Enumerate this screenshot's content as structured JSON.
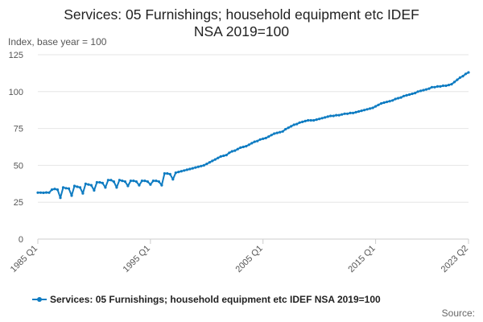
{
  "chart_data": {
    "type": "line",
    "title_line1": "Services: 05 Furnishings; household equipment etc IDEF",
    "title_line2": "NSA 2019=100",
    "ylabel": "Index, base year = 100",
    "xlabel": "",
    "ylim": [
      0,
      125
    ],
    "yticks": [
      "0",
      "25",
      "50",
      "75",
      "100",
      "125"
    ],
    "xticks": [
      {
        "label": "1985 Q1",
        "t": 1985.0
      },
      {
        "label": "1995 Q1",
        "t": 1995.0
      },
      {
        "label": "2005 Q1",
        "t": 2005.0
      },
      {
        "label": "2015 Q1",
        "t": 2015.0
      },
      {
        "label": "2023 Q2",
        "t": 2023.25
      }
    ],
    "xlim": [
      1985.0,
      2023.25
    ],
    "grid": true,
    "legend_position": "bottom",
    "series": [
      {
        "name": "Services: 05 Furnishings; household equipment etc IDEF NSA 2019=100",
        "color": "#0f7cc2",
        "points": [
          [
            1985.0,
            31.5
          ],
          [
            1985.25,
            31.5
          ],
          [
            1985.5,
            31.4
          ],
          [
            1985.75,
            31.6
          ],
          [
            1986.0,
            31.5
          ],
          [
            1986.25,
            33.5
          ],
          [
            1986.5,
            34.0
          ],
          [
            1986.75,
            33.5
          ],
          [
            1987.0,
            28.0
          ],
          [
            1987.25,
            35.0
          ],
          [
            1987.5,
            34.5
          ],
          [
            1987.75,
            34.3
          ],
          [
            1988.0,
            29.5
          ],
          [
            1988.25,
            36.0
          ],
          [
            1988.5,
            35.5
          ],
          [
            1988.75,
            35.0
          ],
          [
            1989.0,
            31.0
          ],
          [
            1989.25,
            37.5
          ],
          [
            1989.5,
            37.0
          ],
          [
            1989.75,
            36.5
          ],
          [
            1990.0,
            33.0
          ],
          [
            1990.25,
            38.5
          ],
          [
            1990.5,
            38.5
          ],
          [
            1990.75,
            38.0
          ],
          [
            1991.0,
            35.0
          ],
          [
            1991.25,
            40.0
          ],
          [
            1991.5,
            40.0
          ],
          [
            1991.75,
            39.0
          ],
          [
            1992.0,
            35.0
          ],
          [
            1992.25,
            40.0
          ],
          [
            1992.5,
            39.5
          ],
          [
            1992.75,
            39.0
          ],
          [
            1993.0,
            36.0
          ],
          [
            1993.25,
            39.5
          ],
          [
            1993.5,
            39.5
          ],
          [
            1993.75,
            39.0
          ],
          [
            1994.0,
            36.5
          ],
          [
            1994.25,
            39.5
          ],
          [
            1994.5,
            39.5
          ],
          [
            1994.75,
            39.0
          ],
          [
            1995.0,
            37.0
          ],
          [
            1995.25,
            39.5
          ],
          [
            1995.5,
            39.5
          ],
          [
            1995.75,
            39.0
          ],
          [
            1996.0,
            36.5
          ],
          [
            1996.25,
            44.5
          ],
          [
            1996.5,
            44.5
          ],
          [
            1996.75,
            44.0
          ],
          [
            1997.0,
            40.5
          ],
          [
            1997.25,
            45.0
          ],
          [
            1997.5,
            45.5
          ],
          [
            1997.75,
            46.0
          ],
          [
            1998.0,
            46.5
          ],
          [
            1998.25,
            47.0
          ],
          [
            1998.5,
            47.5
          ],
          [
            1998.75,
            48.0
          ],
          [
            1999.0,
            48.5
          ],
          [
            1999.25,
            49.0
          ],
          [
            1999.5,
            49.5
          ],
          [
            1999.75,
            50.0
          ],
          [
            2000.0,
            51.0
          ],
          [
            2000.25,
            52.0
          ],
          [
            2000.5,
            53.0
          ],
          [
            2000.75,
            54.0
          ],
          [
            2001.0,
            55.0
          ],
          [
            2001.25,
            56.0
          ],
          [
            2001.5,
            56.5
          ],
          [
            2001.75,
            57.0
          ],
          [
            2002.0,
            58.5
          ],
          [
            2002.25,
            59.5
          ],
          [
            2002.5,
            60.0
          ],
          [
            2002.75,
            61.0
          ],
          [
            2003.0,
            62.0
          ],
          [
            2003.25,
            62.5
          ],
          [
            2003.5,
            63.0
          ],
          [
            2003.75,
            64.0
          ],
          [
            2004.0,
            65.0
          ],
          [
            2004.25,
            66.0
          ],
          [
            2004.5,
            66.5
          ],
          [
            2004.75,
            67.5
          ],
          [
            2005.0,
            68.0
          ],
          [
            2005.25,
            68.5
          ],
          [
            2005.5,
            69.5
          ],
          [
            2005.75,
            70.5
          ],
          [
            2006.0,
            71.5
          ],
          [
            2006.25,
            72.0
          ],
          [
            2006.5,
            72.5
          ],
          [
            2006.75,
            73.0
          ],
          [
            2007.0,
            74.5
          ],
          [
            2007.25,
            75.5
          ],
          [
            2007.5,
            76.5
          ],
          [
            2007.75,
            77.5
          ],
          [
            2008.0,
            78.0
          ],
          [
            2008.25,
            79.0
          ],
          [
            2008.5,
            79.5
          ],
          [
            2008.75,
            80.0
          ],
          [
            2009.0,
            80.5
          ],
          [
            2009.25,
            80.5
          ],
          [
            2009.5,
            80.5
          ],
          [
            2009.75,
            81.0
          ],
          [
            2010.0,
            81.5
          ],
          [
            2010.25,
            82.0
          ],
          [
            2010.5,
            82.5
          ],
          [
            2010.75,
            83.0
          ],
          [
            2011.0,
            83.5
          ],
          [
            2011.25,
            83.5
          ],
          [
            2011.5,
            84.0
          ],
          [
            2011.75,
            84.0
          ],
          [
            2012.0,
            84.5
          ],
          [
            2012.25,
            85.0
          ],
          [
            2012.5,
            85.0
          ],
          [
            2012.75,
            85.5
          ],
          [
            2013.0,
            85.5
          ],
          [
            2013.25,
            86.0
          ],
          [
            2013.5,
            86.5
          ],
          [
            2013.75,
            87.0
          ],
          [
            2014.0,
            87.5
          ],
          [
            2014.25,
            88.0
          ],
          [
            2014.5,
            88.5
          ],
          [
            2014.75,
            89.0
          ],
          [
            2015.0,
            90.0
          ],
          [
            2015.25,
            91.0
          ],
          [
            2015.5,
            92.0
          ],
          [
            2015.75,
            92.5
          ],
          [
            2016.0,
            93.0
          ],
          [
            2016.25,
            93.5
          ],
          [
            2016.5,
            94.0
          ],
          [
            2016.75,
            95.0
          ],
          [
            2017.0,
            95.5
          ],
          [
            2017.25,
            96.0
          ],
          [
            2017.5,
            97.0
          ],
          [
            2017.75,
            97.5
          ],
          [
            2018.0,
            98.0
          ],
          [
            2018.25,
            98.5
          ],
          [
            2018.5,
            99.0
          ],
          [
            2018.75,
            100.0
          ],
          [
            2019.0,
            100.5
          ],
          [
            2019.25,
            101.0
          ],
          [
            2019.5,
            101.5
          ],
          [
            2019.75,
            102.0
          ],
          [
            2020.0,
            103.0
          ],
          [
            2020.25,
            103.0
          ],
          [
            2020.5,
            103.5
          ],
          [
            2020.75,
            103.5
          ],
          [
            2021.0,
            104.0
          ],
          [
            2021.25,
            104.0
          ],
          [
            2021.5,
            104.5
          ],
          [
            2021.75,
            105.0
          ],
          [
            2022.0,
            106.5
          ],
          [
            2022.25,
            108.0
          ],
          [
            2022.5,
            109.5
          ],
          [
            2022.75,
            110.5
          ],
          [
            2023.0,
            112.0
          ],
          [
            2023.25,
            113.0
          ]
        ]
      }
    ]
  },
  "footer": {
    "source_label": "Source:"
  }
}
